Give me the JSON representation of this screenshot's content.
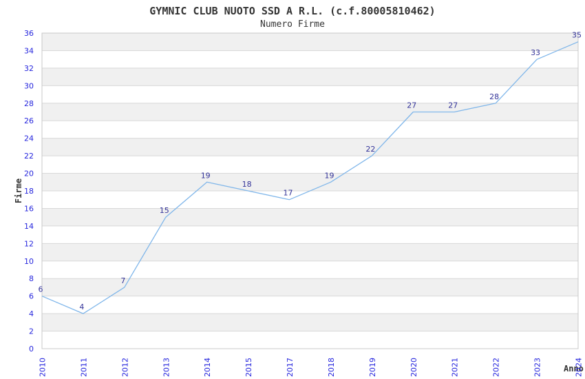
{
  "header": {
    "title": "GYMNIC CLUB NUOTO SSD A R.L. (c.f.80005810462)",
    "subtitle": "Numero Firme"
  },
  "chart_data": {
    "type": "line",
    "title": "GYMNIC CLUB NUOTO SSD A R.L. (c.f.80005810462)",
    "subtitle": "Numero Firme",
    "xlabel": "Anno",
    "ylabel": "Firme",
    "categories": [
      "2010",
      "2011",
      "2012",
      "2013",
      "2014",
      "2015",
      "2017",
      "2018",
      "2019",
      "2020",
      "2021",
      "2022",
      "2023",
      "2024"
    ],
    "values": [
      6,
      4,
      7,
      15,
      19,
      18,
      17,
      19,
      22,
      27,
      27,
      28,
      33,
      35
    ],
    "ylim": [
      0,
      36
    ],
    "ytick_step": 2,
    "grid": "horizontal",
    "alternating_bands": true,
    "legend": "none",
    "point_labels_visible": true,
    "colors": {
      "line": "#7fb6ea",
      "tick_label": "#2525dd",
      "point_label": "#333399",
      "band": "#f0f0f0",
      "gridline": "#d8d8d8",
      "border": "#c8c8c8",
      "title": "#333333"
    }
  }
}
